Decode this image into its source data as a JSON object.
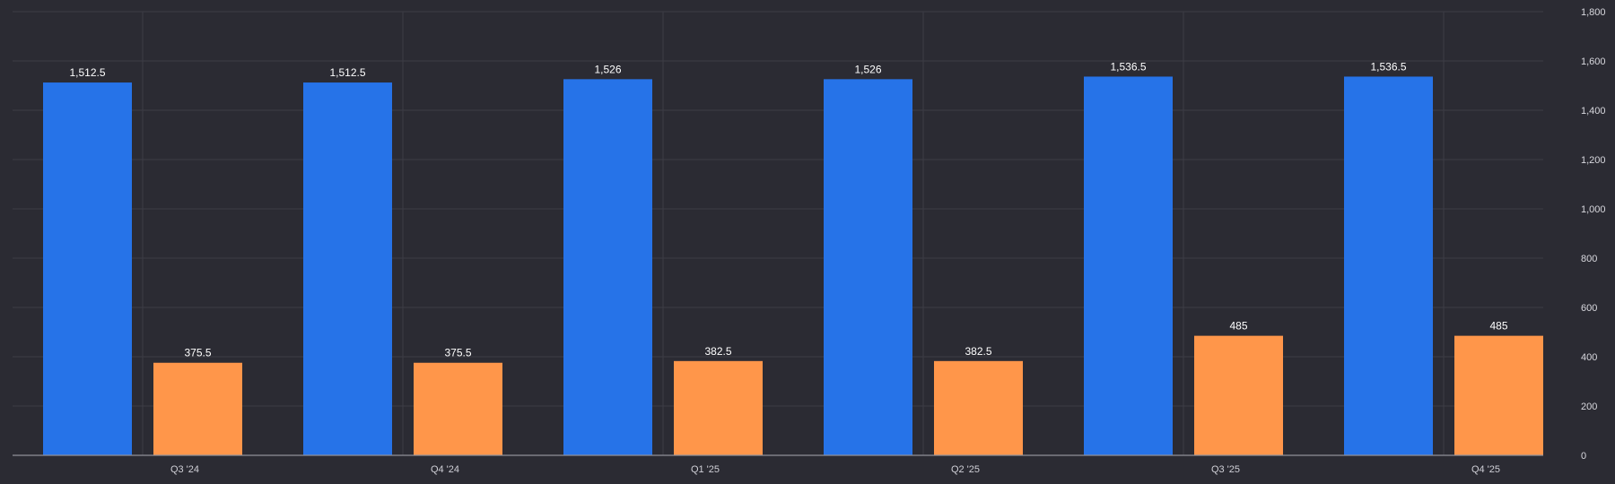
{
  "theme": {
    "background": "#2b2b33",
    "grid": "#3d3d46",
    "axis": "#8f8f99",
    "text": "#d8d8de"
  },
  "chart_data": {
    "type": "bar",
    "categories": [
      "Q3 '24",
      "Q4 '24",
      "Q1 '25",
      "Q2 '25",
      "Q3 '25",
      "Q4 '25"
    ],
    "series": [
      {
        "values": [
          1512.5,
          1512.5,
          1526,
          1526,
          1536.5,
          1536.5
        ],
        "value_labels": [
          "1,512.5",
          "1,512.5",
          "1,526",
          "1,526",
          "1,536.5",
          "1,536.5"
        ],
        "color": "#2673e8"
      },
      {
        "values": [
          375.5,
          375.5,
          382.5,
          382.5,
          485,
          485
        ],
        "value_labels": [
          "375.5",
          "375.5",
          "382.5",
          "382.5",
          "485",
          "485"
        ],
        "color": "#ff964a"
      }
    ],
    "y_ticks": [
      0,
      200,
      400,
      600,
      800,
      1000,
      1200,
      1400,
      1600,
      1800
    ],
    "y_tick_labels": [
      "0",
      "200",
      "400",
      "600",
      "800",
      "1,000",
      "1,200",
      "1,400",
      "1,600",
      "1,800"
    ],
    "ylim": [
      0,
      1800
    ],
    "y_axis_side": "right",
    "grid": true,
    "legend": "none"
  }
}
